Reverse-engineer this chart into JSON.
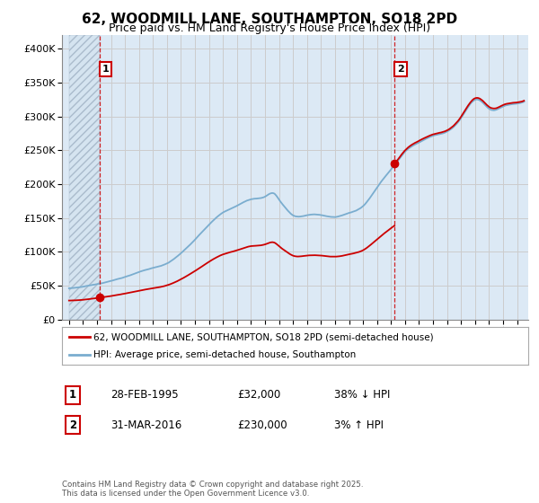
{
  "title": "62, WOODMILL LANE, SOUTHAMPTON, SO18 2PD",
  "subtitle": "Price paid vs. HM Land Registry's House Price Index (HPI)",
  "legend_line1": "62, WOODMILL LANE, SOUTHAMPTON, SO18 2PD (semi-detached house)",
  "legend_line2": "HPI: Average price, semi-detached house, Southampton",
  "annotation1_date": "28-FEB-1995",
  "annotation1_price": "£32,000",
  "annotation1_hpi": "38% ↓ HPI",
  "annotation2_date": "31-MAR-2016",
  "annotation2_price": "£230,000",
  "annotation2_hpi": "3% ↑ HPI",
  "footer": "Contains HM Land Registry data © Crown copyright and database right 2025.\nThis data is licensed under the Open Government Licence v3.0.",
  "sale1_year": 1995.17,
  "sale1_value": 32000,
  "sale2_year": 2016.25,
  "sale2_value": 230000,
  "hatch_start_year": 1993.0,
  "ylim_min": 0,
  "ylim_max": 420000,
  "xlim_min": 1992.5,
  "xlim_max": 2025.8,
  "red_line_color": "#cc0000",
  "blue_line_color": "#7aadcf",
  "dashed_line_color": "#cc0000",
  "hatch_facecolor": "#d5e4f0",
  "grid_color": "#cccccc",
  "bg_color": "#dce9f5",
  "title_fontsize": 11,
  "subtitle_fontsize": 9
}
